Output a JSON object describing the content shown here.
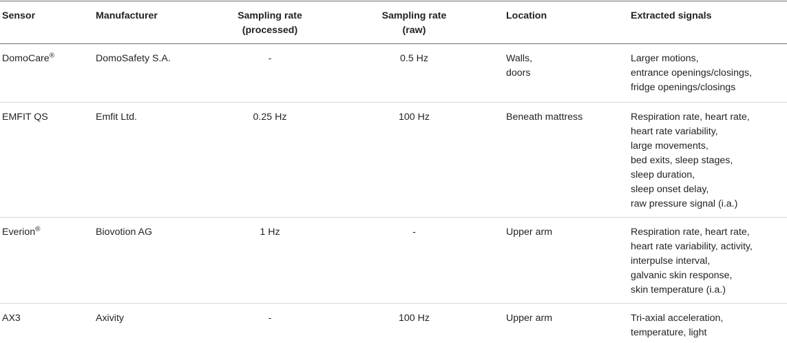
{
  "table": {
    "headers": {
      "sensor": "Sensor",
      "manufacturer": "Manufacturer",
      "rate_processed": "Sampling rate\n(processed)",
      "rate_raw": "Sampling rate\n(raw)",
      "location": "Location",
      "signals": "Extracted signals"
    },
    "rows": [
      {
        "sensor": "DomoCare",
        "sensor_mark": "®",
        "manufacturer": "DomoSafety S.A.",
        "rate_processed": "-",
        "rate_raw": "0.5 Hz",
        "location": "Walls,\ndoors",
        "signals": "Larger motions,\nentrance openings/closings,\nfridge openings/closings"
      },
      {
        "sensor": "EMFIT QS",
        "sensor_mark": "",
        "manufacturer": "Emfit Ltd.",
        "rate_processed": "0.25 Hz",
        "rate_raw": "100 Hz",
        "location": "Beneath mattress",
        "signals": "Respiration rate, heart rate,\nheart rate variability,\nlarge movements,\nbed exits, sleep stages,\nsleep duration,\nsleep onset delay,\nraw pressure signal (i.a.)"
      },
      {
        "sensor": "Everion",
        "sensor_mark": "®",
        "manufacturer": "Biovotion AG",
        "rate_processed": "1 Hz",
        "rate_raw": "-",
        "location": "Upper arm",
        "signals": "Respiration rate, heart rate,\nheart rate variability, activity,\ninterpulse interval,\ngalvanic skin response,\nskin temperature (i.a.)"
      },
      {
        "sensor": "AX3",
        "sensor_mark": "",
        "manufacturer": "Axivity",
        "rate_processed": "-",
        "rate_raw": "100 Hz",
        "location": "Upper arm",
        "signals": "Tri-axial acceleration,\ntemperature, light"
      }
    ]
  }
}
